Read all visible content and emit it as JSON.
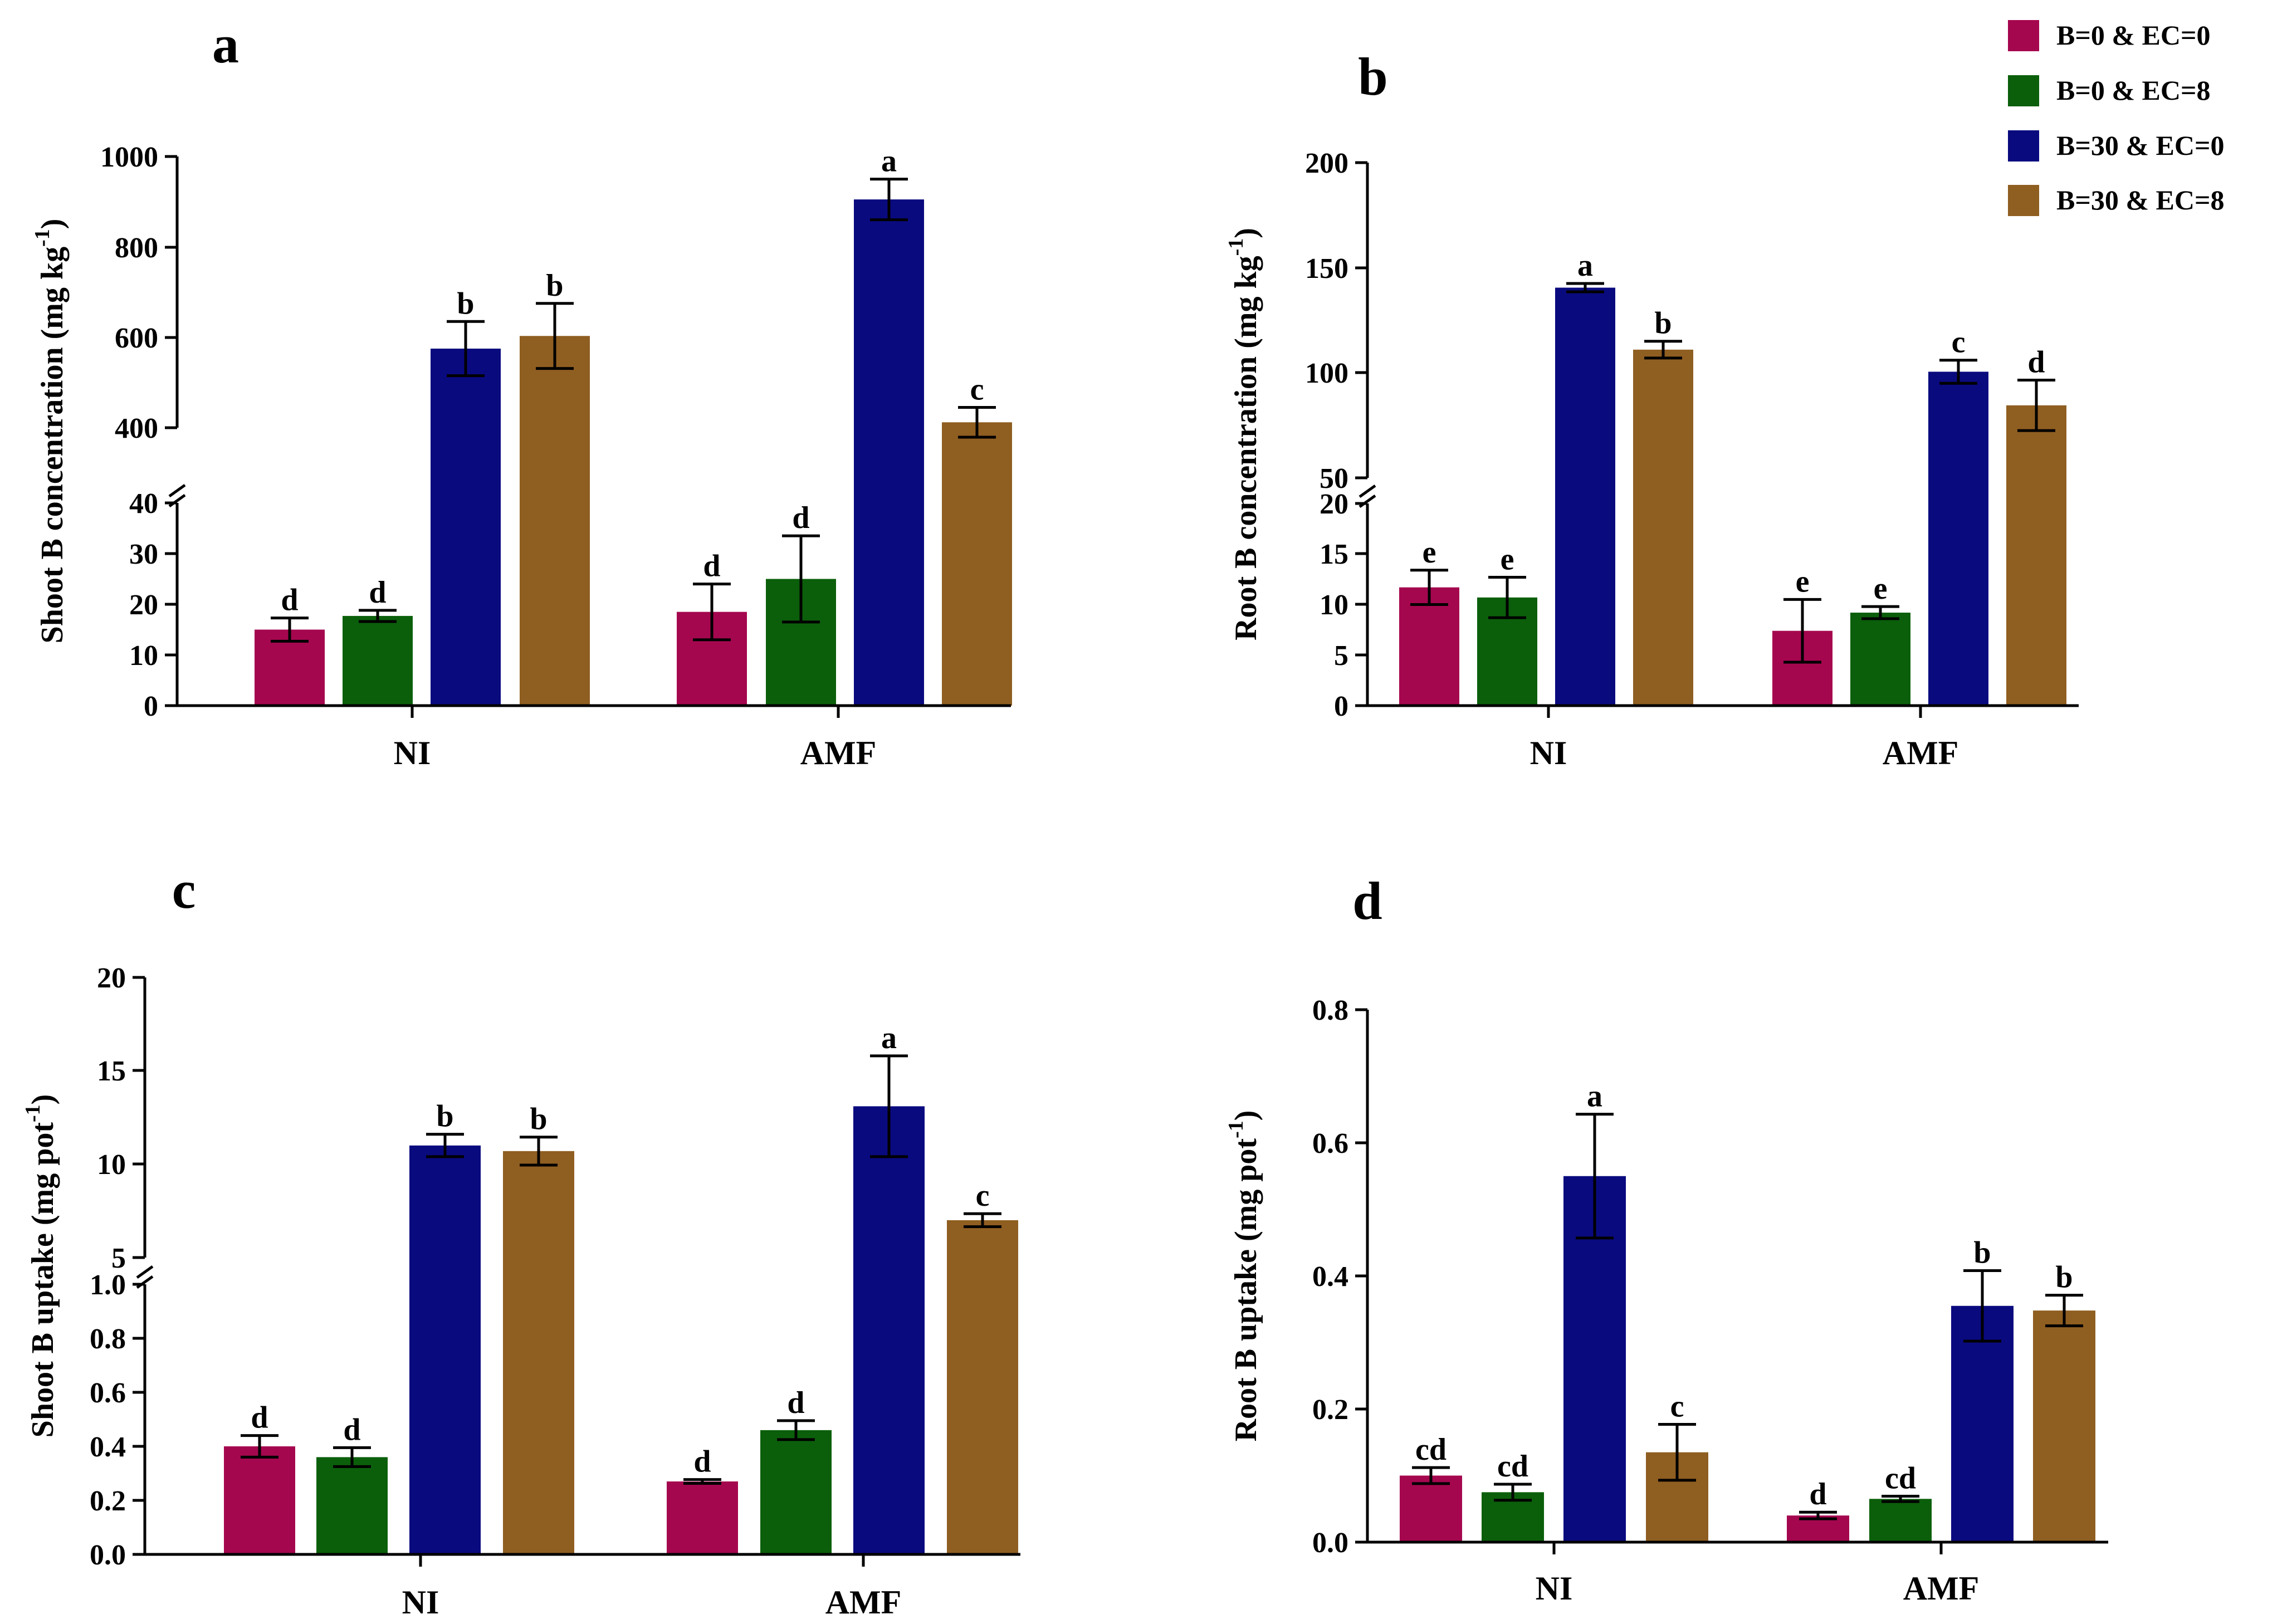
{
  "legend": {
    "items": [
      {
        "label": "B=0 & EC=0",
        "color": "#A5074F"
      },
      {
        "label": "B=0 & EC=8",
        "color": "#0B5F0B"
      },
      {
        "label": "B=30 & EC=0",
        "color": "#0A0A7F"
      },
      {
        "label": "B=30 & EC=8",
        "color": "#8F5E21"
      }
    ]
  },
  "chart_data": [
    {
      "type": "bar",
      "panel": "a",
      "ylabel": "Shoot B concentration (mg kg",
      "ylabel_sup": "-1",
      "categories": [
        "NI",
        "AMF"
      ],
      "broken_axis": true,
      "lower_ticks": [
        "0",
        "10",
        "20",
        "30",
        "40"
      ],
      "upper_ticks": [
        "400",
        "600",
        "800",
        "1000"
      ],
      "series": [
        {
          "name": "B=0 & EC=0",
          "values": [
            15,
            18.5
          ],
          "errors": [
            2.3,
            5.5
          ],
          "labels": [
            "d",
            "d"
          ]
        },
        {
          "name": "B=0 & EC=8",
          "values": [
            17.7,
            25
          ],
          "errors": [
            1.1,
            8.5
          ],
          "labels": [
            "d",
            "d"
          ]
        },
        {
          "name": "B=30 & EC=0",
          "values": [
            575,
            905
          ],
          "errors": [
            60,
            45
          ],
          "labels": [
            "b",
            "a"
          ]
        },
        {
          "name": "B=30 & EC=8",
          "values": [
            603,
            412
          ],
          "errors": [
            72,
            33
          ],
          "labels": [
            "b",
            "c"
          ]
        }
      ]
    },
    {
      "type": "bar",
      "panel": "b",
      "ylabel": "Root B concentration (mg kg",
      "ylabel_sup": "-1",
      "categories": [
        "NI",
        "AMF"
      ],
      "broken_axis": true,
      "lower_ticks": [
        "0",
        "5",
        "10",
        "15",
        "20"
      ],
      "upper_ticks": [
        "50",
        "100",
        "150",
        "200"
      ],
      "series": [
        {
          "name": "B=0 & EC=0",
          "values": [
            11.7,
            7.4
          ],
          "errors": [
            1.7,
            3.1
          ],
          "labels": [
            "e",
            "e"
          ]
        },
        {
          "name": "B=0 & EC=8",
          "values": [
            10.7,
            9.2
          ],
          "errors": [
            2.0,
            0.6
          ],
          "labels": [
            "e",
            "e"
          ]
        },
        {
          "name": "B=30 & EC=0",
          "values": [
            140.5,
            100.5
          ],
          "errors": [
            2.0,
            5.5
          ],
          "labels": [
            "a",
            "c"
          ]
        },
        {
          "name": "B=30 & EC=8",
          "values": [
            111,
            84.5
          ],
          "errors": [
            4.0,
            12.0
          ],
          "labels": [
            "b",
            "d"
          ]
        }
      ]
    },
    {
      "type": "bar",
      "panel": "c",
      "ylabel": "Shoot B uptake (mg pot",
      "ylabel_sup": "-1",
      "categories": [
        "NI",
        "AMF"
      ],
      "broken_axis": true,
      "lower_ticks": [
        "0.0",
        "0.2",
        "0.4",
        "0.6",
        "0.8",
        "1.0"
      ],
      "upper_ticks": [
        "5",
        "10",
        "15",
        "20"
      ],
      "series": [
        {
          "name": "B=0 & EC=0",
          "values": [
            0.4,
            0.27
          ],
          "errors": [
            0.04,
            0.007
          ],
          "labels": [
            "d",
            "d"
          ]
        },
        {
          "name": "B=0 & EC=8",
          "values": [
            0.36,
            0.46
          ],
          "errors": [
            0.035,
            0.035
          ],
          "labels": [
            "d",
            "d"
          ]
        },
        {
          "name": "B=30 & EC=0",
          "values": [
            11.0,
            13.1
          ],
          "errors": [
            0.6,
            2.7
          ],
          "labels": [
            "b",
            "a"
          ]
        },
        {
          "name": "B=30 & EC=8",
          "values": [
            10.7,
            7.0
          ],
          "errors": [
            0.75,
            0.35
          ],
          "labels": [
            "b",
            "c"
          ]
        }
      ]
    },
    {
      "type": "bar",
      "panel": "d",
      "ylabel": "Root B uptake (mg pot",
      "ylabel_sup": "-1",
      "categories": [
        "NI",
        "AMF"
      ],
      "broken_axis": false,
      "ylim": [
        0,
        0.8
      ],
      "ticks": [
        "0.0",
        "0.2",
        "0.4",
        "0.6",
        "0.8"
      ],
      "series": [
        {
          "name": "B=0 & EC=0",
          "values": [
            0.1,
            0.04
          ],
          "errors": [
            0.012,
            0.005
          ],
          "labels": [
            "cd",
            "d"
          ]
        },
        {
          "name": "B=0 & EC=8",
          "values": [
            0.075,
            0.065
          ],
          "errors": [
            0.012,
            0.004
          ],
          "labels": [
            "cd",
            "cd"
          ]
        },
        {
          "name": "B=30 & EC=0",
          "values": [
            0.55,
            0.355
          ],
          "errors": [
            0.093,
            0.053
          ],
          "labels": [
            "a",
            "b"
          ]
        },
        {
          "name": "B=30 & EC=8",
          "values": [
            0.135,
            0.348
          ],
          "errors": [
            0.042,
            0.023
          ],
          "labels": [
            "c",
            "b"
          ]
        }
      ]
    }
  ]
}
